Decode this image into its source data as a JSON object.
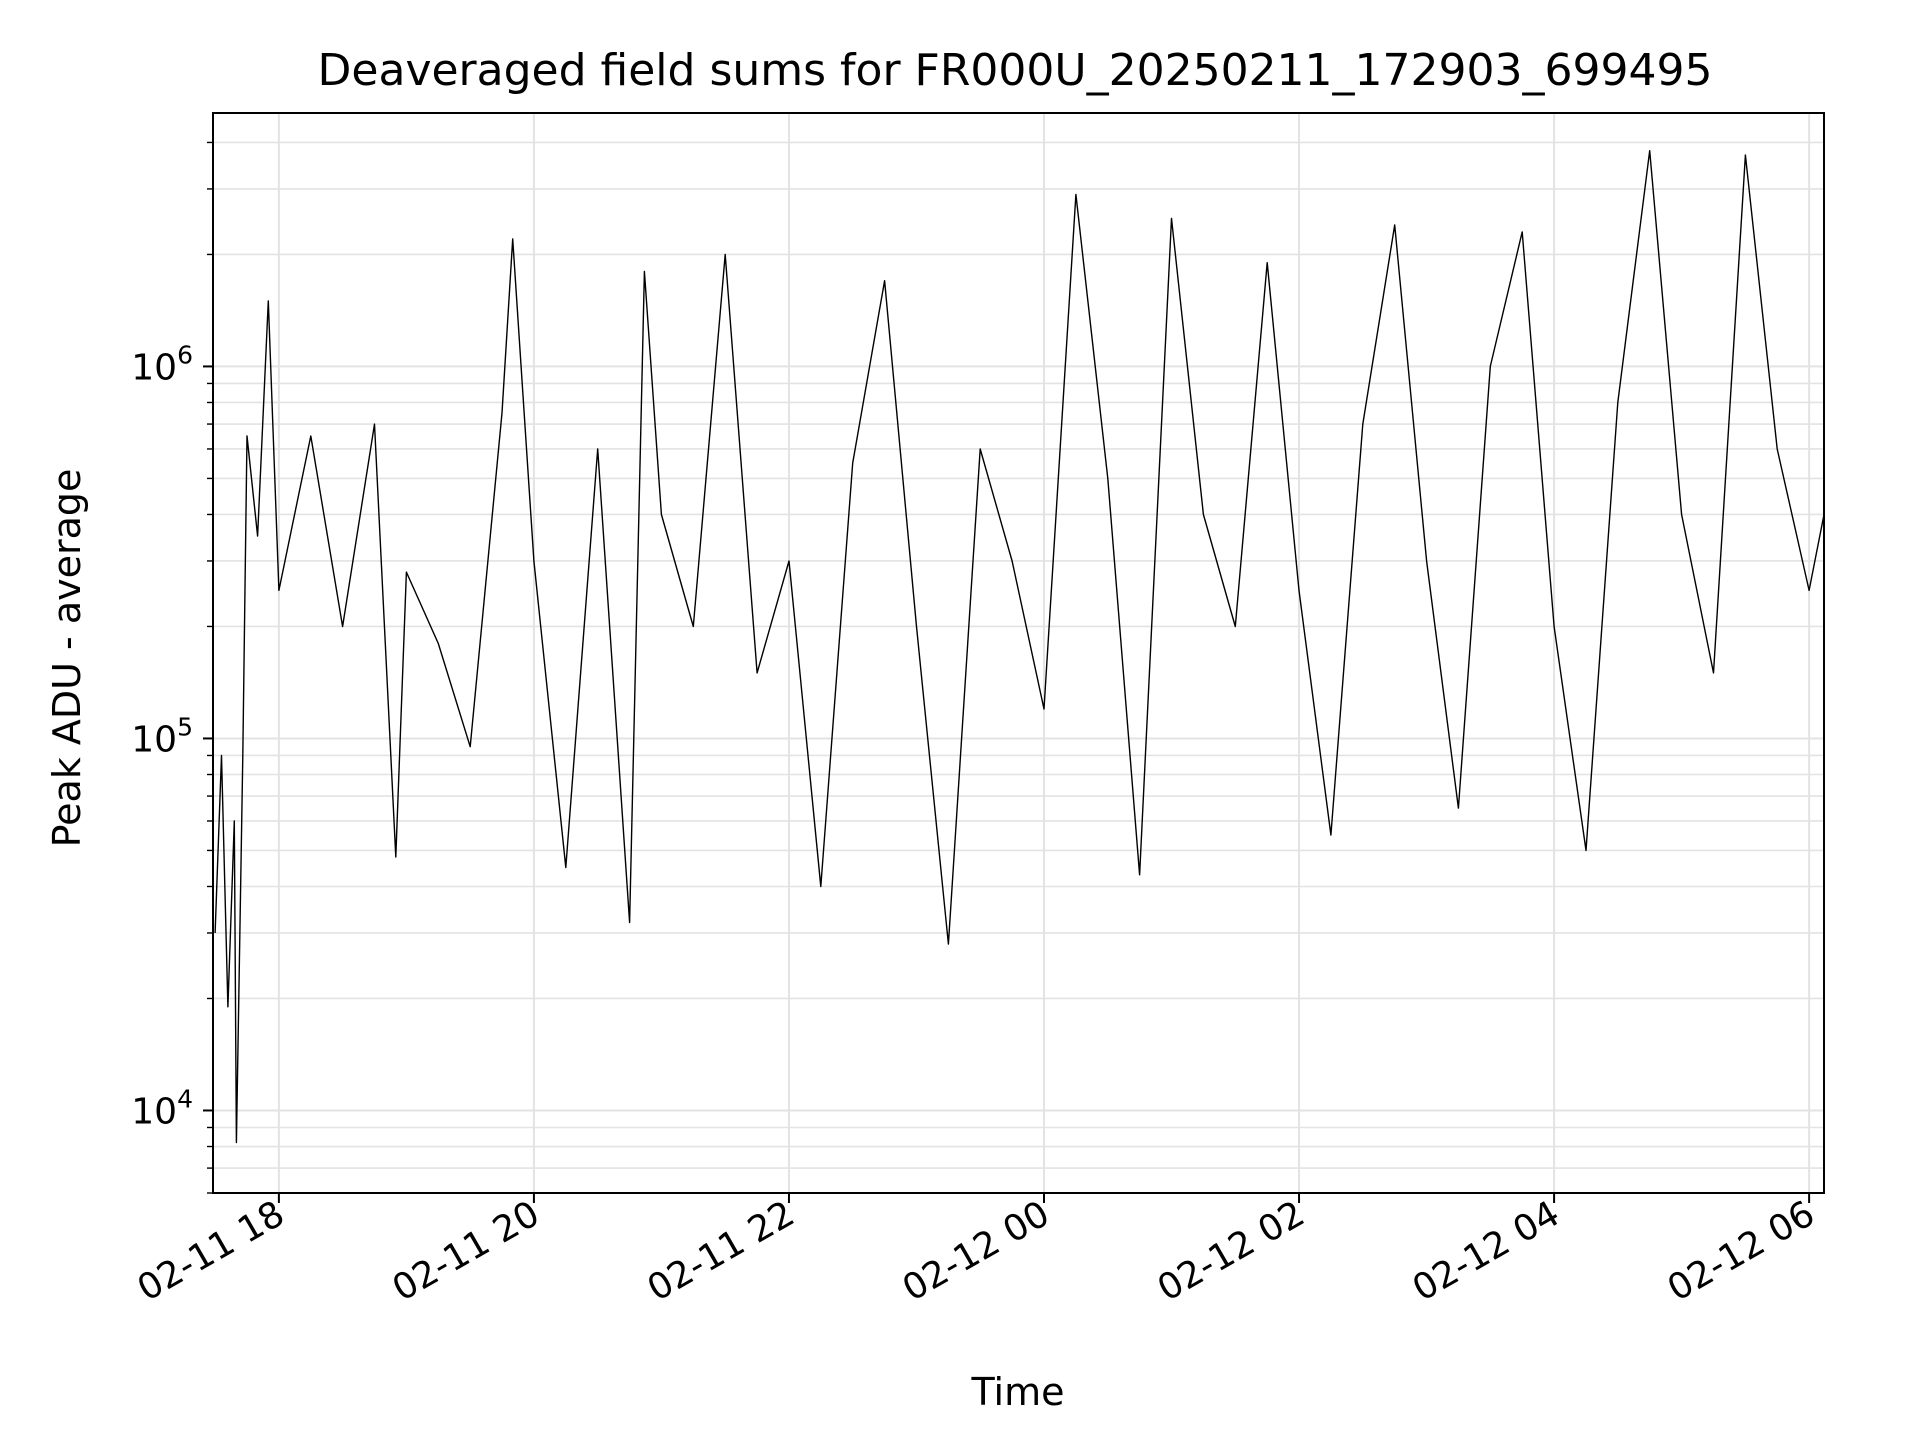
{
  "chart_data": {
    "type": "line",
    "title": "Deaveraged field sums for FR000U_20250211_172903_699495",
    "xlabel": "Time",
    "ylabel": "Peak ADU - average",
    "x_range": [
      "2025-02-11 17:29",
      "2025-02-12 06:07"
    ],
    "ylim": [
      6000,
      4800000
    ],
    "yscale": "log",
    "grid": true,
    "line_color": "#000000",
    "grid_color": "#e3e3e3",
    "x_ticks": [
      {
        "value": "2025-02-11 18:00",
        "label": "02-11 18"
      },
      {
        "value": "2025-02-11 20:00",
        "label": "02-11 20"
      },
      {
        "value": "2025-02-11 22:00",
        "label": "02-11 22"
      },
      {
        "value": "2025-02-12 00:00",
        "label": "02-12 00"
      },
      {
        "value": "2025-02-12 02:00",
        "label": "02-12 02"
      },
      {
        "value": "2025-02-12 04:00",
        "label": "02-12 04"
      },
      {
        "value": "2025-02-12 06:00",
        "label": "02-12 06"
      }
    ],
    "y_ticks": [
      {
        "value": 10000,
        "base": "10",
        "exp": "4"
      },
      {
        "value": 100000,
        "base": "10",
        "exp": "5"
      },
      {
        "value": 1000000,
        "base": "10",
        "exp": "6"
      }
    ],
    "series": [
      {
        "points": [
          [
            "2025-02-11 17:30",
            30000
          ],
          [
            "2025-02-11 17:33",
            90000
          ],
          [
            "2025-02-11 17:36",
            19000
          ],
          [
            "2025-02-11 17:39",
            60000
          ],
          [
            "2025-02-11 17:40",
            8200
          ],
          [
            "2025-02-11 17:43",
            90000
          ],
          [
            "2025-02-11 17:45",
            650000
          ],
          [
            "2025-02-11 17:50",
            350000
          ],
          [
            "2025-02-11 17:55",
            1500000
          ],
          [
            "2025-02-11 18:00",
            250000
          ],
          [
            "2025-02-11 18:15",
            650000
          ],
          [
            "2025-02-11 18:30",
            200000
          ],
          [
            "2025-02-11 18:45",
            700000
          ],
          [
            "2025-02-11 18:55",
            48000
          ],
          [
            "2025-02-11 19:00",
            280000
          ],
          [
            "2025-02-11 19:15",
            180000
          ],
          [
            "2025-02-11 19:30",
            95000
          ],
          [
            "2025-02-11 19:45",
            750000
          ],
          [
            "2025-02-11 19:50",
            2200000
          ],
          [
            "2025-02-11 20:00",
            300000
          ],
          [
            "2025-02-11 20:15",
            45000
          ],
          [
            "2025-02-11 20:30",
            600000
          ],
          [
            "2025-02-11 20:45",
            32000
          ],
          [
            "2025-02-11 20:52",
            1800000
          ],
          [
            "2025-02-11 21:00",
            400000
          ],
          [
            "2025-02-11 21:15",
            200000
          ],
          [
            "2025-02-11 21:30",
            2000000
          ],
          [
            "2025-02-11 21:45",
            150000
          ],
          [
            "2025-02-11 22:00",
            300000
          ],
          [
            "2025-02-11 22:15",
            40000
          ],
          [
            "2025-02-11 22:30",
            550000
          ],
          [
            "2025-02-11 22:45",
            1700000
          ],
          [
            "2025-02-11 23:00",
            200000
          ],
          [
            "2025-02-11 23:15",
            28000
          ],
          [
            "2025-02-11 23:30",
            600000
          ],
          [
            "2025-02-11 23:45",
            300000
          ],
          [
            "2025-02-12 00:00",
            120000
          ],
          [
            "2025-02-12 00:15",
            2900000
          ],
          [
            "2025-02-12 00:30",
            500000
          ],
          [
            "2025-02-12 00:45",
            43000
          ],
          [
            "2025-02-12 01:00",
            2500000
          ],
          [
            "2025-02-12 01:15",
            400000
          ],
          [
            "2025-02-12 01:30",
            200000
          ],
          [
            "2025-02-12 01:45",
            1900000
          ],
          [
            "2025-02-12 02:00",
            250000
          ],
          [
            "2025-02-12 02:15",
            55000
          ],
          [
            "2025-02-12 02:30",
            700000
          ],
          [
            "2025-02-12 02:45",
            2400000
          ],
          [
            "2025-02-12 03:00",
            300000
          ],
          [
            "2025-02-12 03:15",
            65000
          ],
          [
            "2025-02-12 03:30",
            1000000
          ],
          [
            "2025-02-12 03:45",
            2300000
          ],
          [
            "2025-02-12 04:00",
            200000
          ],
          [
            "2025-02-12 04:15",
            50000
          ],
          [
            "2025-02-12 04:30",
            800000
          ],
          [
            "2025-02-12 04:45",
            3800000
          ],
          [
            "2025-02-12 05:00",
            400000
          ],
          [
            "2025-02-12 05:15",
            150000
          ],
          [
            "2025-02-12 05:30",
            3700000
          ],
          [
            "2025-02-12 05:45",
            600000
          ],
          [
            "2025-02-12 06:00",
            250000
          ],
          [
            "2025-02-12 06:07",
            400000
          ]
        ]
      }
    ]
  }
}
